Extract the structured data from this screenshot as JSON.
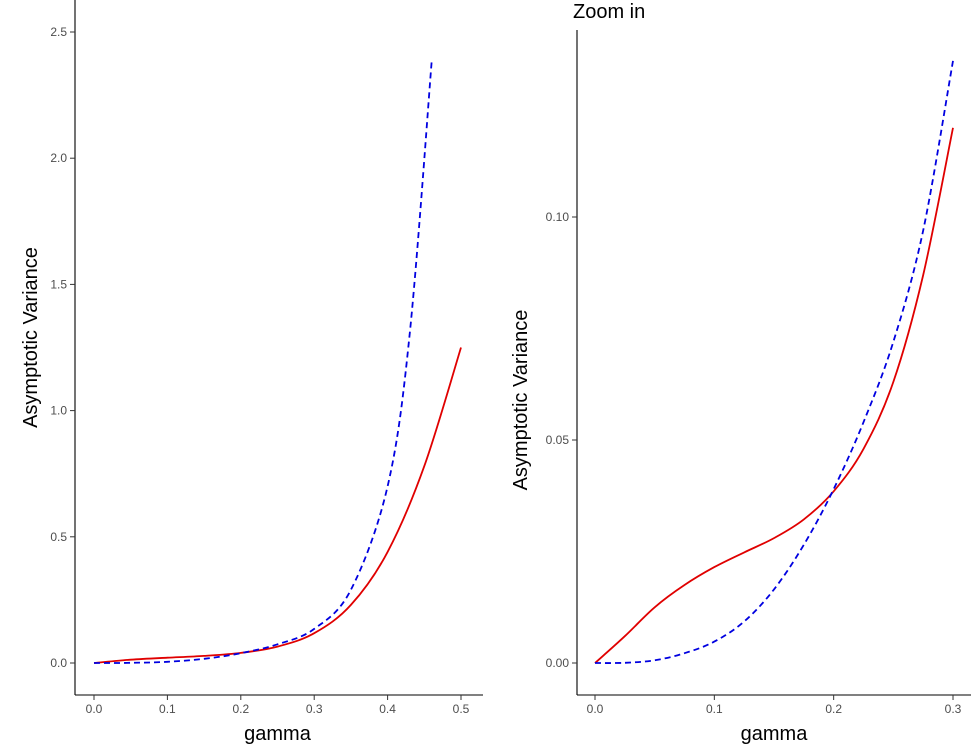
{
  "colors": {
    "red_series": "#e00000",
    "blue_series": "#0000e0"
  },
  "chart_data": [
    {
      "type": "line",
      "title": "",
      "xlabel": "gamma",
      "ylabel": "Asymptotic  Variance",
      "xlim": [
        0,
        0.5
      ],
      "ylim": [
        0,
        2.5
      ],
      "x_ticks": [
        0.0,
        0.1,
        0.2,
        0.3,
        0.4,
        0.5
      ],
      "x_tick_labels": [
        "0.0",
        "0.1",
        "0.2",
        "0.3",
        "0.4",
        "0.5"
      ],
      "y_ticks": [
        0.0,
        0.5,
        1.0,
        1.5,
        2.0,
        2.5
      ],
      "y_tick_labels": [
        "0.0",
        "0.5",
        "1.0",
        "1.5",
        "2.0",
        "2.5"
      ],
      "grid": false,
      "series": [
        {
          "style": "solid",
          "color": "#e00000",
          "x": [
            0.0,
            0.05,
            0.1,
            0.15,
            0.2,
            0.25,
            0.3,
            0.35,
            0.4,
            0.45,
            0.5
          ],
          "y": [
            0.0,
            0.013,
            0.021,
            0.028,
            0.04,
            0.065,
            0.118,
            0.23,
            0.44,
            0.78,
            1.25
          ]
        },
        {
          "style": "dashed",
          "color": "#0000e0",
          "x": [
            0.0,
            0.05,
            0.1,
            0.15,
            0.2,
            0.25,
            0.3,
            0.35,
            0.4,
            0.43,
            0.46
          ],
          "y": [
            0.0,
            0.0006,
            0.0048,
            0.0165,
            0.039,
            0.074,
            0.135,
            0.29,
            0.7,
            1.3,
            2.38
          ]
        }
      ]
    },
    {
      "type": "line",
      "title": "Zoom in",
      "xlabel": "gamma",
      "ylabel": "Asymptotic  Variance",
      "xlim": [
        0,
        0.3
      ],
      "ylim": [
        0,
        0.135
      ],
      "x_ticks": [
        0.0,
        0.1,
        0.2,
        0.3
      ],
      "x_tick_labels": [
        "0.0",
        "0.1",
        "0.2",
        "0.3"
      ],
      "y_ticks": [
        0.0,
        0.05,
        0.1
      ],
      "y_tick_labels": [
        "0.00",
        "0.05",
        "0.10"
      ],
      "grid": false,
      "series": [
        {
          "style": "solid",
          "color": "#e00000",
          "x": [
            0.0,
            0.025,
            0.05,
            0.075,
            0.1,
            0.125,
            0.15,
            0.175,
            0.2,
            0.225,
            0.25,
            0.275,
            0.3
          ],
          "y": [
            0.0,
            0.006,
            0.0125,
            0.0175,
            0.0215,
            0.0248,
            0.028,
            0.0322,
            0.0385,
            0.048,
            0.063,
            0.087,
            0.12
          ]
        },
        {
          "style": "dashed",
          "color": "#0000e0",
          "x": [
            0.0,
            0.025,
            0.05,
            0.075,
            0.1,
            0.125,
            0.15,
            0.175,
            0.2,
            0.225,
            0.25,
            0.275,
            0.3
          ],
          "y": [
            0.0,
            5e-05,
            0.0006,
            0.0022,
            0.0048,
            0.0093,
            0.0165,
            0.0265,
            0.039,
            0.054,
            0.072,
            0.097,
            0.135
          ]
        }
      ]
    }
  ]
}
